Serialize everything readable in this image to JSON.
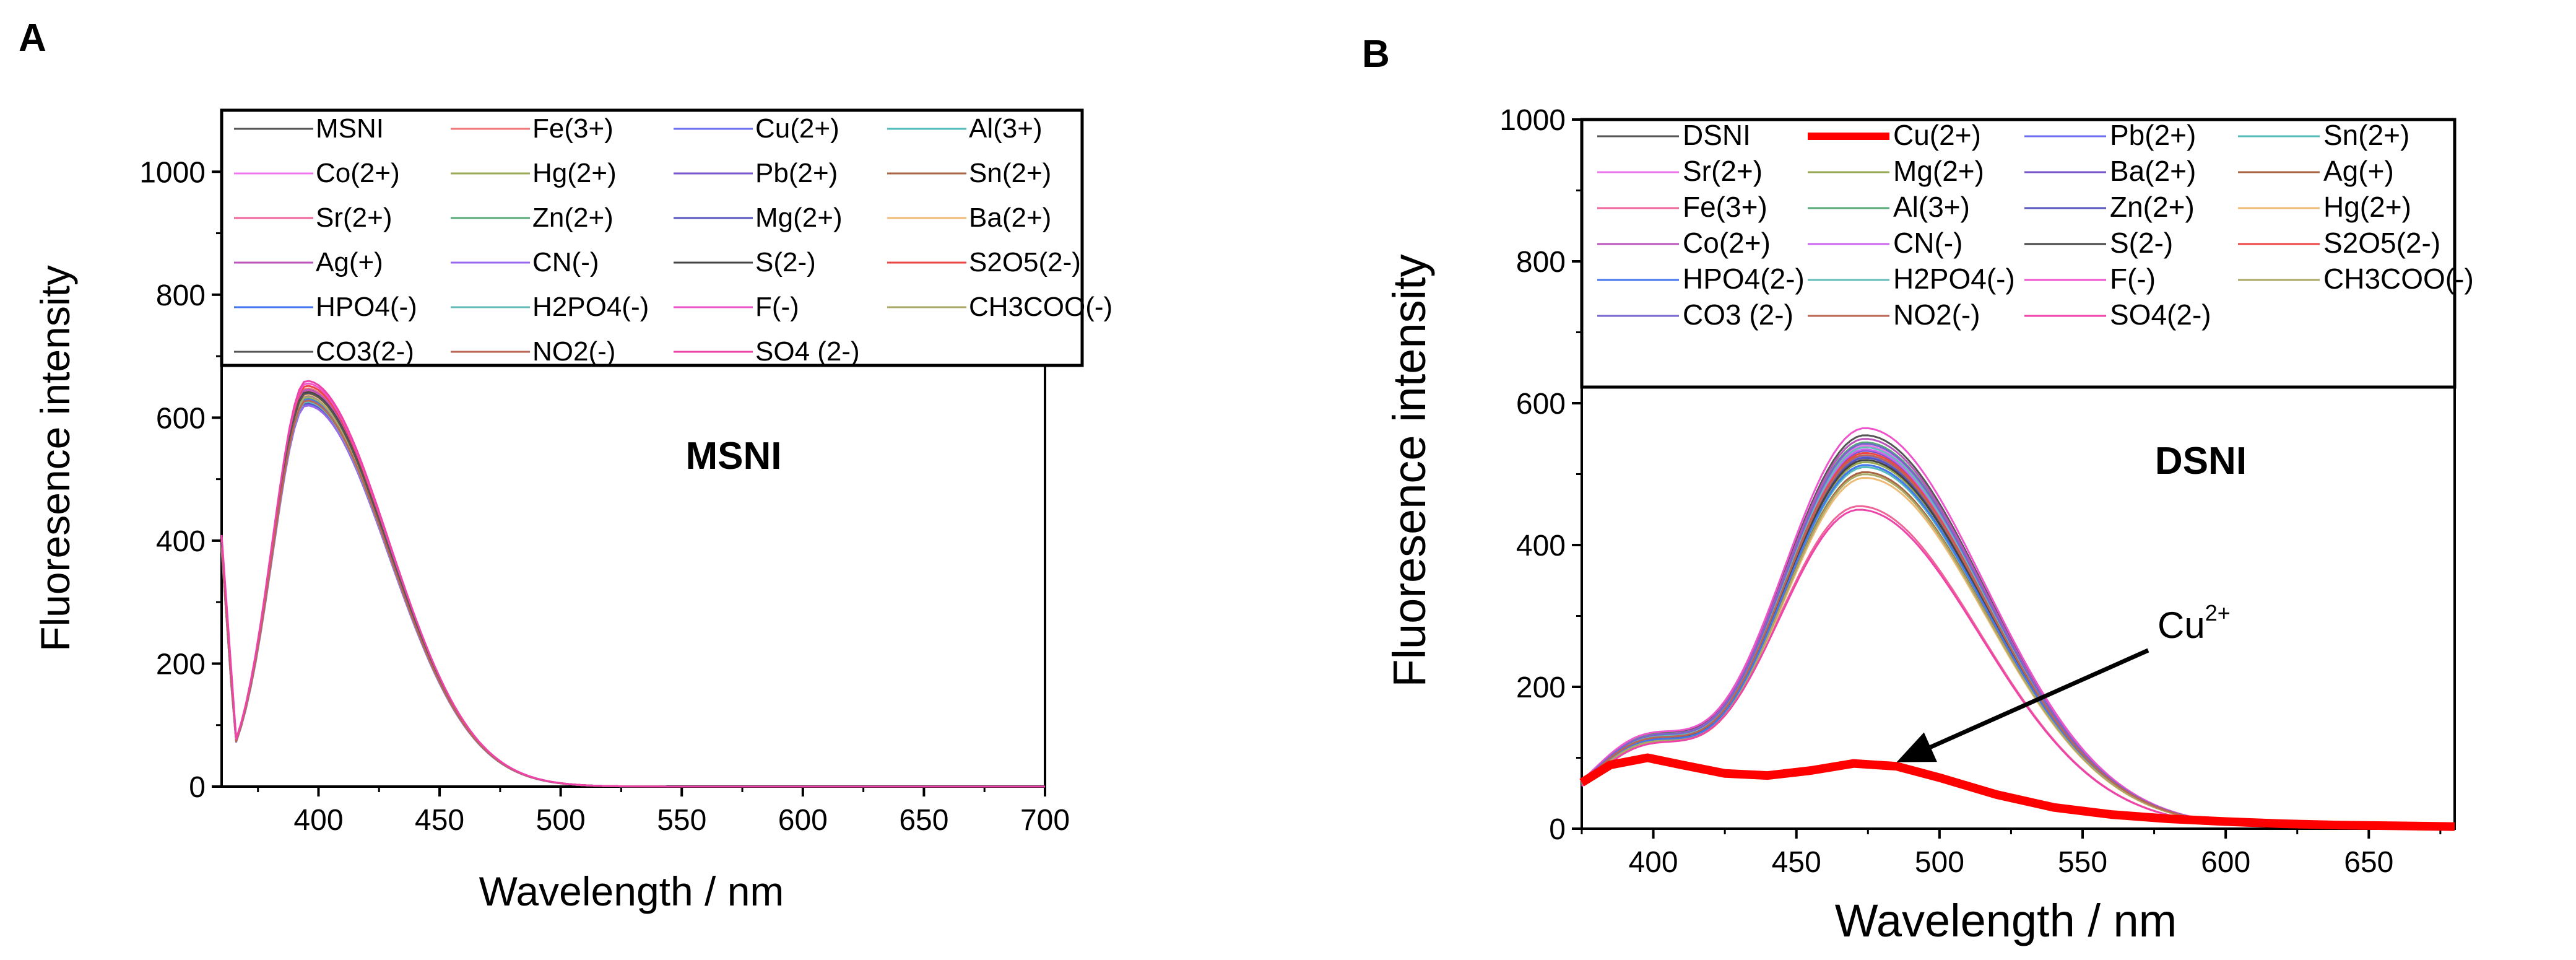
{
  "chart_data": [
    {
      "type": "line",
      "panel_label": "A",
      "title": "MSNI",
      "xlabel": "Wavelength / nm",
      "ylabel": "Fluoresence intensity",
      "xlim": [
        360,
        700
      ],
      "ylim": [
        0,
        1100
      ],
      "x_ticks": [
        400,
        450,
        500,
        550,
        600,
        650,
        700
      ],
      "y_ticks": [
        0,
        200,
        400,
        600,
        800,
        1000
      ],
      "x_tick_labels": [
        "400",
        "450",
        "500",
        "550",
        "600",
        "650",
        "700"
      ],
      "y_tick_labels": [
        "0",
        "200",
        "400",
        "600",
        "800",
        "1000"
      ],
      "legend_position": "top",
      "legend_columns": 4,
      "series": [
        {
          "name": "MSNI",
          "color": "#555555",
          "peak_x": 395,
          "peak_y": 630,
          "width_left": 14,
          "width_right": 34
        },
        {
          "name": "Fe(3+)",
          "color": "#ee7777",
          "peak_x": 395,
          "peak_y": 648,
          "width_left": 14,
          "width_right": 34
        },
        {
          "name": "Cu(2+)",
          "color": "#6e6ef0",
          "peak_x": 395,
          "peak_y": 622,
          "width_left": 14,
          "width_right": 34
        },
        {
          "name": "Al(3+)",
          "color": "#55bbbb",
          "peak_x": 395,
          "peak_y": 634,
          "width_left": 14,
          "width_right": 34
        },
        {
          "name": "Co(2+)",
          "color": "#ee77ee",
          "peak_x": 395,
          "peak_y": 640,
          "width_left": 14,
          "width_right": 34
        },
        {
          "name": "Hg(2+)",
          "color": "#99aa55",
          "peak_x": 395,
          "peak_y": 628,
          "width_left": 14,
          "width_right": 34
        },
        {
          "name": "Pb(2+)",
          "color": "#7755cc",
          "peak_x": 395,
          "peak_y": 636,
          "width_left": 14,
          "width_right": 34
        },
        {
          "name": "Sn(2+)",
          "color": "#aa6644",
          "peak_x": 395,
          "peak_y": 626,
          "width_left": 14,
          "width_right": 34
        },
        {
          "name": "Sr(2+)",
          "color": "#ee6699",
          "peak_x": 395,
          "peak_y": 644,
          "width_left": 14,
          "width_right": 34
        },
        {
          "name": "Zn(2+)",
          "color": "#55aa77",
          "peak_x": 395,
          "peak_y": 632,
          "width_left": 14,
          "width_right": 34
        },
        {
          "name": "Mg(2+)",
          "color": "#5555bb",
          "peak_x": 395,
          "peak_y": 624,
          "width_left": 14,
          "width_right": 34
        },
        {
          "name": "Ba(2+)",
          "color": "#eebb77",
          "peak_x": 395,
          "peak_y": 638,
          "width_left": 14,
          "width_right": 34
        },
        {
          "name": "Ag(+)",
          "color": "#bb55bb",
          "peak_x": 395,
          "peak_y": 646,
          "width_left": 14,
          "width_right": 34
        },
        {
          "name": "CN(-)",
          "color": "#9966ee",
          "peak_x": 395,
          "peak_y": 620,
          "width_left": 14,
          "width_right": 34
        },
        {
          "name": "S(2-)",
          "color": "#444444",
          "peak_x": 395,
          "peak_y": 642,
          "width_left": 14,
          "width_right": 34
        },
        {
          "name": "S2O5(2-)",
          "color": "#ee4444",
          "peak_x": 395,
          "peak_y": 652,
          "width_left": 14,
          "width_right": 34
        },
        {
          "name": "HPO4(-)",
          "color": "#4477ee",
          "peak_x": 395,
          "peak_y": 630,
          "width_left": 14,
          "width_right": 34
        },
        {
          "name": "H2PO4(-)",
          "color": "#66bbbb",
          "peak_x": 395,
          "peak_y": 626,
          "width_left": 14,
          "width_right": 34
        },
        {
          "name": "F(-)",
          "color": "#ee55cc",
          "peak_x": 395,
          "peak_y": 656,
          "width_left": 14,
          "width_right": 34
        },
        {
          "name": "CH3COO(-)",
          "color": "#aaaa66",
          "peak_x": 395,
          "peak_y": 634,
          "width_left": 14,
          "width_right": 34
        },
        {
          "name": "CO3(2-)",
          "color": "#555555",
          "peak_x": 395,
          "peak_y": 640,
          "width_left": 14,
          "width_right": 34
        },
        {
          "name": "NO2(-)",
          "color": "#bb6655",
          "peak_x": 395,
          "peak_y": 628,
          "width_left": 14,
          "width_right": 34
        },
        {
          "name": "SO4 (2-)",
          "color": "#ee44aa",
          "peak_x": 395,
          "peak_y": 660,
          "width_left": 14,
          "width_right": 34
        }
      ]
    },
    {
      "type": "line",
      "panel_label": "B",
      "title": "DSNI",
      "xlabel": "Wavelength / nm",
      "ylabel": "Fluoresence intensity",
      "xlim": [
        375,
        680
      ],
      "ylim": [
        0,
        1000
      ],
      "x_ticks": [
        400,
        450,
        500,
        550,
        600,
        650
      ],
      "y_ticks": [
        0,
        200,
        400,
        600,
        800,
        1000
      ],
      "x_tick_labels": [
        "400",
        "450",
        "500",
        "550",
        "600",
        "650"
      ],
      "y_tick_labels": [
        "0",
        "200",
        "400",
        "600",
        "800",
        "1000"
      ],
      "legend_position": "top",
      "legend_columns": 4,
      "annotation": {
        "text": "Cu",
        "superscript": "2+",
        "points_to_x": 485,
        "points_to_y": 85
      },
      "series": [
        {
          "name": "DSNI",
          "color": "#555555",
          "peak_x": 474,
          "peak_y": 550,
          "width_left": 30,
          "width_right": 42,
          "shoulder_y": 105
        },
        {
          "name": "Cu(2+)",
          "color": "#ff0000",
          "highlight": true,
          "points": [
            [
              375,
              65
            ],
            [
              385,
              90
            ],
            [
              398,
              100
            ],
            [
              410,
              90
            ],
            [
              425,
              78
            ],
            [
              440,
              75
            ],
            [
              455,
              82
            ],
            [
              470,
              92
            ],
            [
              485,
              88
            ],
            [
              500,
              72
            ],
            [
              520,
              48
            ],
            [
              540,
              30
            ],
            [
              560,
              20
            ],
            [
              580,
              14
            ],
            [
              600,
              10
            ],
            [
              620,
              7
            ],
            [
              640,
              5
            ],
            [
              660,
              4
            ],
            [
              680,
              3
            ]
          ]
        },
        {
          "name": "Pb(2+)",
          "color": "#6e6ef0",
          "peak_x": 474,
          "peak_y": 520,
          "width_left": 30,
          "width_right": 42,
          "shoulder_y": 100
        },
        {
          "name": "Sn(2+)",
          "color": "#55bbbb",
          "peak_x": 474,
          "peak_y": 505,
          "width_left": 30,
          "width_right": 42,
          "shoulder_y": 98
        },
        {
          "name": "Sr(2+)",
          "color": "#ee77ee",
          "peak_x": 474,
          "peak_y": 535,
          "width_left": 30,
          "width_right": 42,
          "shoulder_y": 102
        },
        {
          "name": "Mg(2+)",
          "color": "#99aa55",
          "peak_x": 474,
          "peak_y": 512,
          "width_left": 30,
          "width_right": 42,
          "shoulder_y": 99
        },
        {
          "name": "Ba(2+)",
          "color": "#7755cc",
          "peak_x": 474,
          "peak_y": 528,
          "width_left": 30,
          "width_right": 42,
          "shoulder_y": 101
        },
        {
          "name": "Ag(+)",
          "color": "#aa6644",
          "peak_x": 474,
          "peak_y": 498,
          "width_left": 30,
          "width_right": 42,
          "shoulder_y": 97
        },
        {
          "name": "Fe(3+)",
          "color": "#ee6699",
          "peak_x": 472,
          "peak_y": 450,
          "width_left": 30,
          "width_right": 42,
          "shoulder_y": 92
        },
        {
          "name": "Al(3+)",
          "color": "#55aa77",
          "peak_x": 474,
          "peak_y": 540,
          "width_left": 30,
          "width_right": 42,
          "shoulder_y": 104
        },
        {
          "name": "Zn(2+)",
          "color": "#5555bb",
          "peak_x": 474,
          "peak_y": 518,
          "width_left": 30,
          "width_right": 42,
          "shoulder_y": 100
        },
        {
          "name": "Hg(2+)",
          "color": "#eebb77",
          "peak_x": 474,
          "peak_y": 490,
          "width_left": 30,
          "width_right": 42,
          "shoulder_y": 96
        },
        {
          "name": "Co(2+)",
          "color": "#bb55bb",
          "peak_x": 474,
          "peak_y": 545,
          "width_left": 30,
          "width_right": 42,
          "shoulder_y": 103
        },
        {
          "name": "CN(-)",
          "color": "#cc66ee",
          "peak_x": 474,
          "peak_y": 530,
          "width_left": 30,
          "width_right": 42,
          "shoulder_y": 101
        },
        {
          "name": "S(2-)",
          "color": "#444444",
          "peak_x": 474,
          "peak_y": 515,
          "width_left": 30,
          "width_right": 42,
          "shoulder_y": 99
        },
        {
          "name": "S2O5(2-)",
          "color": "#ee4444",
          "peak_x": 474,
          "peak_y": 525,
          "width_left": 30,
          "width_right": 42,
          "shoulder_y": 100
        },
        {
          "name": "HPO4(2-)",
          "color": "#4477ee",
          "peak_x": 474,
          "peak_y": 508,
          "width_left": 30,
          "width_right": 42,
          "shoulder_y": 98
        },
        {
          "name": "H2PO4(-)",
          "color": "#66bbbb",
          "peak_x": 474,
          "peak_y": 533,
          "width_left": 30,
          "width_right": 42,
          "shoulder_y": 102
        },
        {
          "name": "F(-)",
          "color": "#ee55cc",
          "peak_x": 474,
          "peak_y": 560,
          "width_left": 30,
          "width_right": 42,
          "shoulder_y": 106
        },
        {
          "name": "CH3COO(-)",
          "color": "#aaaa66",
          "peak_x": 474,
          "peak_y": 495,
          "width_left": 30,
          "width_right": 42,
          "shoulder_y": 96
        },
        {
          "name": "CO3 (2-)",
          "color": "#7766cc",
          "peak_x": 474,
          "peak_y": 538,
          "width_left": 30,
          "width_right": 42,
          "shoulder_y": 103
        },
        {
          "name": "NO2(-)",
          "color": "#bb6655",
          "peak_x": 474,
          "peak_y": 522,
          "width_left": 30,
          "width_right": 42,
          "shoulder_y": 100
        },
        {
          "name": "SO4(2-)",
          "color": "#ee44aa",
          "peak_x": 472,
          "peak_y": 445,
          "width_left": 30,
          "width_right": 42,
          "shoulder_y": 92
        }
      ]
    }
  ]
}
